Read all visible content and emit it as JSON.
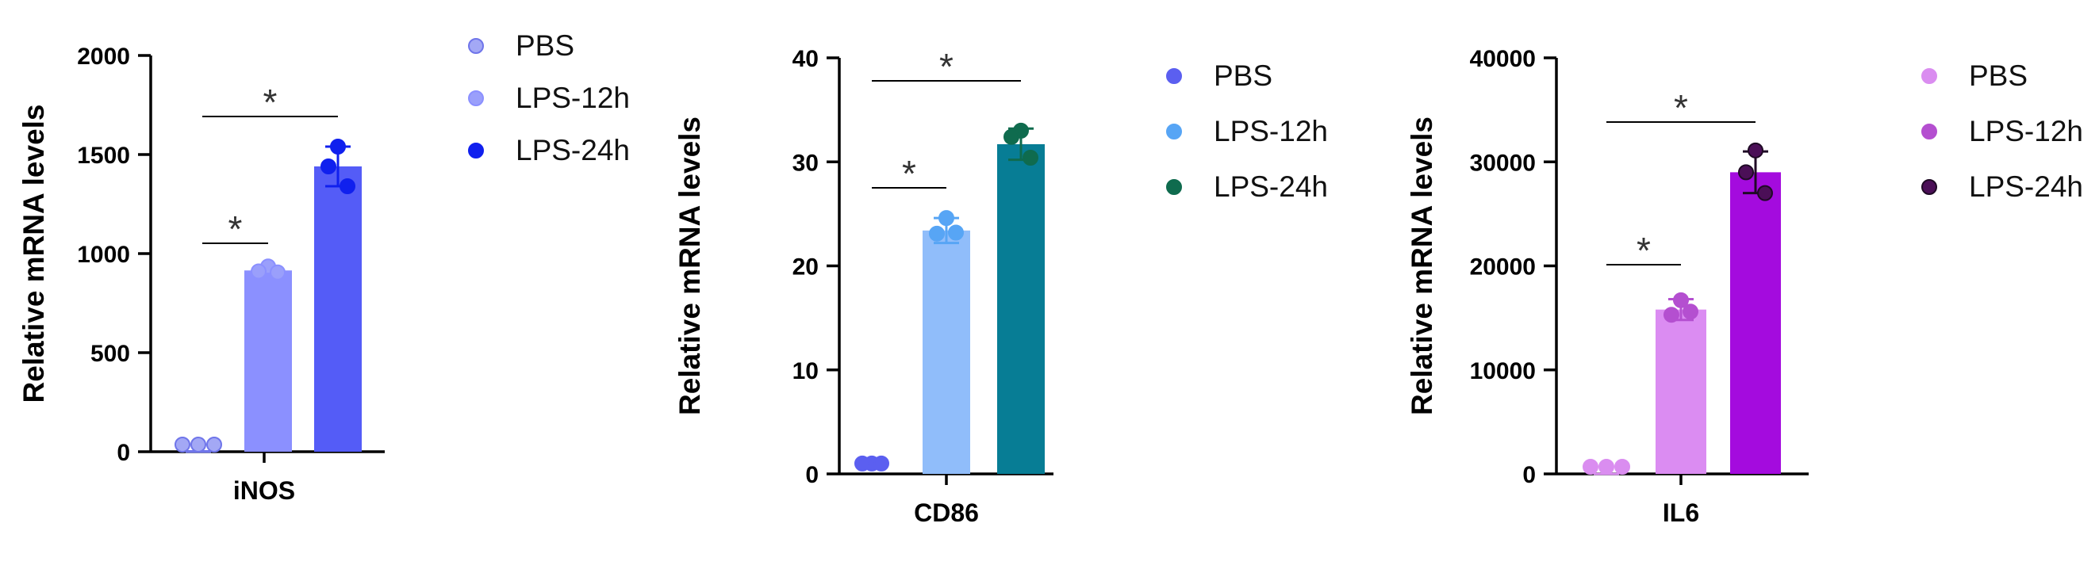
{
  "chart_data": [
    {
      "type": "bar",
      "category": "iNOS",
      "ylabel": "Relative mRNA levels",
      "ylim": [
        0,
        2000
      ],
      "yticks": [
        "0",
        "500",
        "1000",
        "1500",
        "2000"
      ],
      "series": [
        {
          "name": "PBS",
          "mean": 1,
          "error": 1,
          "points": [
            1,
            1,
            1
          ],
          "bar_color": "#ffffff",
          "point_color": "#a3a8f5",
          "point_stroke": "#6f75ea"
        },
        {
          "name": "LPS-12h",
          "mean": 915,
          "error": 15,
          "points": [
            935,
            910,
            905
          ],
          "bar_color": "#8b90ff",
          "point_color": "#9a9ffb",
          "point_stroke": "#8b90ff"
        },
        {
          "name": "LPS-24h",
          "mean": 1440,
          "error": 100,
          "points": [
            1540,
            1440,
            1340
          ],
          "bar_color": "#545cf7",
          "point_color": "#1020ee",
          "point_stroke": "#1020ee"
        }
      ],
      "significance": [
        {
          "from": "PBS",
          "to": "LPS-12h",
          "label": "*"
        },
        {
          "from": "PBS",
          "to": "LPS-24h",
          "label": "*"
        }
      ],
      "legend_position": "right"
    },
    {
      "type": "bar",
      "category": "CD86",
      "ylabel": "Relative mRNA levels",
      "ylim": [
        0,
        40
      ],
      "yticks": [
        "0",
        "10",
        "20",
        "30",
        "40"
      ],
      "series": [
        {
          "name": "PBS",
          "mean": 1,
          "error": 0.1,
          "points": [
            1,
            1,
            1
          ],
          "bar_color": "#ffffff",
          "point_color": "#5b5ff0",
          "point_stroke": "#5b5ff0"
        },
        {
          "name": "LPS-12h",
          "mean": 23.4,
          "error": 1.2,
          "points": [
            24.6,
            23.1,
            23.2
          ],
          "bar_color": "#90bdfa",
          "point_color": "#57a5f5",
          "point_stroke": "#57a5f5"
        },
        {
          "name": "LPS-24h",
          "mean": 31.7,
          "error": 1.5,
          "points": [
            33.0,
            32.4,
            30.4
          ],
          "bar_color": "#077d95",
          "point_color": "#0f6b4e",
          "point_stroke": "#0f6b4e"
        }
      ],
      "significance": [
        {
          "from": "PBS",
          "to": "LPS-12h",
          "label": "*"
        },
        {
          "from": "PBS",
          "to": "LPS-24h",
          "label": "*"
        }
      ],
      "legend_position": "right"
    },
    {
      "type": "bar",
      "category": "IL6",
      "ylabel": "Relative mRNA levels",
      "ylim": [
        0,
        40000
      ],
      "yticks": [
        "0",
        "10000",
        "20000",
        "30000",
        "40000"
      ],
      "series": [
        {
          "name": "PBS",
          "mean": 1,
          "error": 1,
          "points": [
            1,
            1,
            1
          ],
          "bar_color": "#ffffff",
          "point_color": "#da8df0",
          "point_stroke": "#da8df0"
        },
        {
          "name": "LPS-12h",
          "mean": 15800,
          "error": 1000,
          "points": [
            16700,
            15300,
            15600
          ],
          "bar_color": "#db8cf2",
          "point_color": "#b44fd0",
          "point_stroke": "#b44fd0"
        },
        {
          "name": "LPS-24h",
          "mean": 29000,
          "error": 2000,
          "points": [
            31100,
            29000,
            27000
          ],
          "bar_color": "#a40bde",
          "point_color": "#4b0f57",
          "point_stroke": "#1f0a25"
        }
      ],
      "significance": [
        {
          "from": "PBS",
          "to": "LPS-12h",
          "label": "*"
        },
        {
          "from": "PBS",
          "to": "LPS-24h",
          "label": "*"
        }
      ],
      "legend_position": "right"
    }
  ]
}
